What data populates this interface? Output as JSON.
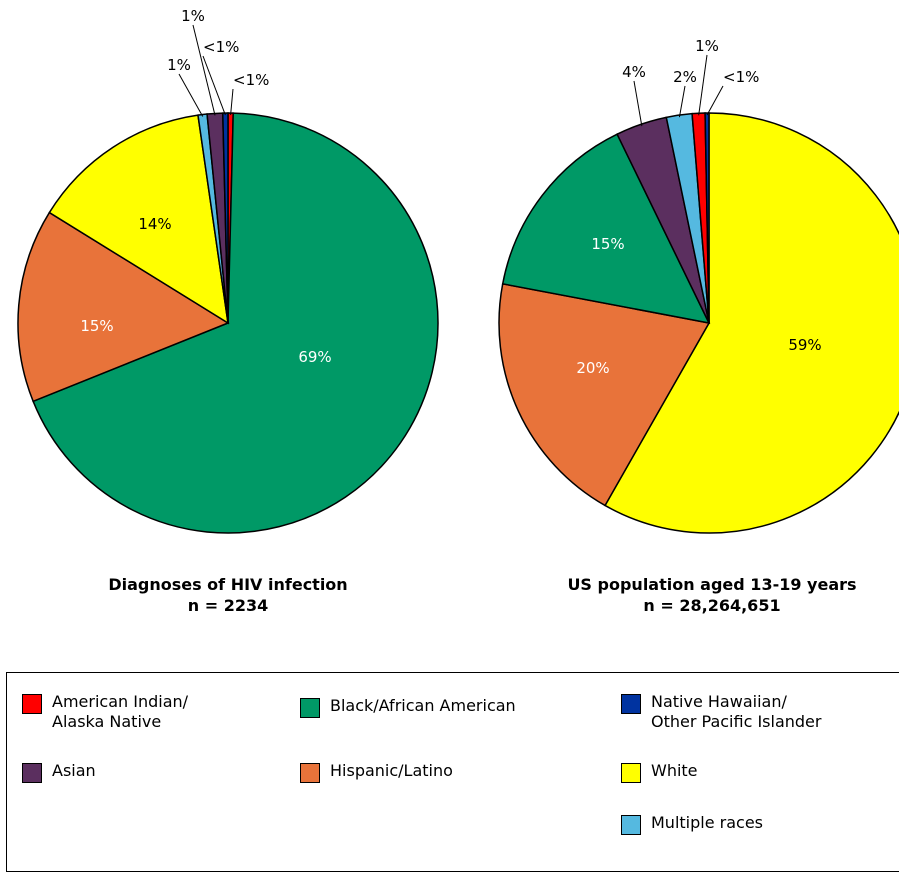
{
  "colors": {
    "american_indian": "#ff0000",
    "asian": "#5b2f5f",
    "black": "#009966",
    "hispanic": "#e8733a",
    "white": "#ffff00",
    "multiple": "#55b9e0",
    "nhopi": "#0033a0"
  },
  "chart_data": [
    {
      "type": "pie",
      "title": "Diagnoses of HIV infection",
      "subtitle": "n = 2234",
      "slices": [
        {
          "category": "American Indian/ Alaska Native",
          "value": 0.4,
          "label": "<1%",
          "color": "#ff0000"
        },
        {
          "category": "Black/African American",
          "value": 69,
          "label": "69%",
          "color": "#009966"
        },
        {
          "category": "Hispanic/Latino",
          "value": 15,
          "label": "15%",
          "color": "#e8733a"
        },
        {
          "category": "White",
          "value": 14,
          "label": "14%",
          "color": "#ffff00"
        },
        {
          "category": "Multiple races",
          "value": 0.7,
          "label": "1%",
          "color": "#55b9e0"
        },
        {
          "category": "Asian",
          "value": 1.2,
          "label": "1%",
          "color": "#5b2f5f"
        },
        {
          "category": "Native Hawaiian/ Other Pacific Islander",
          "value": 0.4,
          "label": "<1%",
          "color": "#0033a0"
        }
      ]
    },
    {
      "type": "pie",
      "title": "US population aged 13-19 years",
      "subtitle": "n = 28,264,651",
      "slices": [
        {
          "category": "White",
          "value": 59,
          "label": "59%",
          "color": "#ffff00"
        },
        {
          "category": "Hispanic/Latino",
          "value": 20,
          "label": "20%",
          "color": "#e8733a"
        },
        {
          "category": "Black/African American",
          "value": 15,
          "label": "15%",
          "color": "#009966"
        },
        {
          "category": "Asian",
          "value": 4,
          "label": "4%",
          "color": "#5b2f5f"
        },
        {
          "category": "Multiple races",
          "value": 2,
          "label": "2%",
          "color": "#55b9e0"
        },
        {
          "category": "American Indian/ Alaska Native",
          "value": 1,
          "label": "1%",
          "color": "#ff0000"
        },
        {
          "category": "Native Hawaiian/ Other Pacific Islander",
          "value": 0.3,
          "label": "<1%",
          "color": "#0033a0"
        }
      ]
    }
  ],
  "legend": [
    {
      "label": "American Indian/\nAlaska Native",
      "color": "#ff0000"
    },
    {
      "label": "Black/African American",
      "color": "#009966"
    },
    {
      "label": "Native Hawaiian/\nOther Pacific Islander",
      "color": "#0033a0"
    },
    {
      "label": "Asian",
      "color": "#5b2f5f"
    },
    {
      "label": "Hispanic/Latino",
      "color": "#e8733a"
    },
    {
      "label": "White",
      "color": "#ffff00"
    },
    {
      "label": "Multiple races",
      "color": "#55b9e0"
    }
  ]
}
